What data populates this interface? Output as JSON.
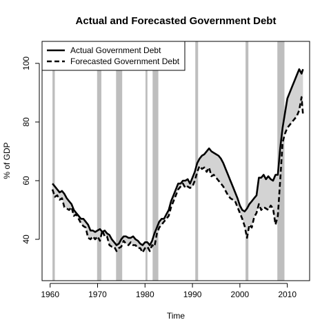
{
  "chart_data": {
    "type": "line",
    "title": "Actual and Forecasted Government Debt",
    "xlabel": "Time",
    "ylabel": "% of GDP",
    "xlim": [
      1958.3,
      2014.7
    ],
    "ylim": [
      25.9,
      107.5
    ],
    "x_ticks": [
      1960,
      1970,
      1980,
      1990,
      2000,
      2010
    ],
    "y_ticks": [
      40,
      60,
      80,
      100
    ],
    "grid": false,
    "legend_position": "top-left",
    "band_fill": "#d3d3d3",
    "recession_color": "#bebebe",
    "recessions": [
      [
        1960.5,
        1961.0
      ],
      [
        1969.9,
        1970.8
      ],
      [
        1973.9,
        1975.2
      ],
      [
        1980.1,
        1980.5
      ],
      [
        1981.6,
        1982.8
      ],
      [
        1990.6,
        1991.2
      ],
      [
        2001.2,
        2001.8
      ],
      [
        2007.9,
        2009.4
      ]
    ],
    "series": [
      {
        "name": "Actual Government Debt",
        "style": "solid",
        "color": "#000000",
        "points": [
          [
            1960.5,
            59
          ],
          [
            1961.0,
            58
          ],
          [
            1961.5,
            57
          ],
          [
            1962.0,
            56
          ],
          [
            1962.5,
            56.5
          ],
          [
            1963.0,
            55.5
          ],
          [
            1963.5,
            54
          ],
          [
            1964.0,
            53
          ],
          [
            1964.5,
            52
          ],
          [
            1965.0,
            50
          ],
          [
            1965.5,
            49
          ],
          [
            1966.0,
            48
          ],
          [
            1966.5,
            47
          ],
          [
            1967.0,
            47
          ],
          [
            1967.5,
            46
          ],
          [
            1968.0,
            45
          ],
          [
            1968.5,
            43
          ],
          [
            1969.0,
            43
          ],
          [
            1969.5,
            42.5
          ],
          [
            1970.0,
            43
          ],
          [
            1970.5,
            43.5
          ],
          [
            1971.0,
            42.5
          ],
          [
            1971.5,
            43
          ],
          [
            1972.0,
            42
          ],
          [
            1972.5,
            41.5
          ],
          [
            1973.0,
            40
          ],
          [
            1973.5,
            39
          ],
          [
            1974.0,
            38
          ],
          [
            1974.5,
            38.5
          ],
          [
            1975.0,
            40
          ],
          [
            1975.5,
            41
          ],
          [
            1976.0,
            41
          ],
          [
            1976.5,
            40.5
          ],
          [
            1977.0,
            40.5
          ],
          [
            1977.5,
            41
          ],
          [
            1978.0,
            40
          ],
          [
            1978.5,
            39.5
          ],
          [
            1979.0,
            38.5
          ],
          [
            1979.5,
            38
          ],
          [
            1980.0,
            39
          ],
          [
            1980.5,
            39
          ],
          [
            1981.0,
            38
          ],
          [
            1981.5,
            39.5
          ],
          [
            1982.0,
            42
          ],
          [
            1982.5,
            44
          ],
          [
            1983.0,
            46
          ],
          [
            1983.5,
            47
          ],
          [
            1984.0,
            47
          ],
          [
            1984.5,
            48.5
          ],
          [
            1985.0,
            50
          ],
          [
            1985.5,
            53
          ],
          [
            1986.0,
            55
          ],
          [
            1986.5,
            57
          ],
          [
            1987.0,
            59
          ],
          [
            1987.5,
            59
          ],
          [
            1988.0,
            60
          ],
          [
            1988.5,
            60
          ],
          [
            1989.0,
            60.5
          ],
          [
            1989.5,
            59
          ],
          [
            1990.0,
            61
          ],
          [
            1990.5,
            63
          ],
          [
            1991.0,
            66
          ],
          [
            1991.5,
            67.5
          ],
          [
            1992.0,
            68.5
          ],
          [
            1992.5,
            69
          ],
          [
            1993.0,
            70
          ],
          [
            1993.5,
            71
          ],
          [
            1994.0,
            70
          ],
          [
            1994.5,
            69.5
          ],
          [
            1995.0,
            69
          ],
          [
            1995.5,
            68.5
          ],
          [
            1996.0,
            67.5
          ],
          [
            1996.5,
            66
          ],
          [
            1997.0,
            64
          ],
          [
            1997.5,
            62
          ],
          [
            1998.0,
            60
          ],
          [
            1998.5,
            58
          ],
          [
            1999.0,
            56
          ],
          [
            1999.5,
            54
          ],
          [
            2000.0,
            51.5
          ],
          [
            2000.5,
            50
          ],
          [
            2001.0,
            49.5
          ],
          [
            2001.5,
            50.5
          ],
          [
            2002.0,
            52
          ],
          [
            2002.5,
            53
          ],
          [
            2003.0,
            54
          ],
          [
            2003.5,
            55
          ],
          [
            2004.0,
            61
          ],
          [
            2004.5,
            61
          ],
          [
            2005.0,
            62
          ],
          [
            2005.5,
            60.5
          ],
          [
            2006.0,
            61.5
          ],
          [
            2006.5,
            60.5
          ],
          [
            2007.0,
            60
          ],
          [
            2007.5,
            62
          ],
          [
            2008.0,
            62
          ],
          [
            2008.5,
            71
          ],
          [
            2009.0,
            78
          ],
          [
            2009.5,
            83
          ],
          [
            2010.0,
            88
          ],
          [
            2010.5,
            90
          ],
          [
            2011.0,
            92
          ],
          [
            2011.5,
            94
          ],
          [
            2012.0,
            96
          ],
          [
            2012.5,
            98
          ],
          [
            2013.0,
            96.5
          ],
          [
            2013.3,
            98
          ]
        ]
      },
      {
        "name": "Forecasted Government Debt",
        "style": "dashed",
        "color": "#000000",
        "points": [
          [
            1960.5,
            57
          ],
          [
            1961.0,
            54.5
          ],
          [
            1961.5,
            55
          ],
          [
            1962.0,
            53.5
          ],
          [
            1962.5,
            54
          ],
          [
            1963.0,
            51
          ],
          [
            1963.5,
            50.5
          ],
          [
            1964.0,
            50
          ],
          [
            1964.5,
            51
          ],
          [
            1965.0,
            48
          ],
          [
            1965.5,
            48.5
          ],
          [
            1966.0,
            47
          ],
          [
            1966.5,
            45.5
          ],
          [
            1967.0,
            44.5
          ],
          [
            1967.5,
            44
          ],
          [
            1968.0,
            40.5
          ],
          [
            1968.5,
            40
          ],
          [
            1969.0,
            41
          ],
          [
            1969.5,
            40
          ],
          [
            1970.0,
            41
          ],
          [
            1970.5,
            39.5
          ],
          [
            1971.0,
            43
          ],
          [
            1971.5,
            41
          ],
          [
            1972.0,
            41
          ],
          [
            1972.5,
            38
          ],
          [
            1973.0,
            37.5
          ],
          [
            1973.5,
            37.5
          ],
          [
            1974.0,
            36
          ],
          [
            1974.5,
            37
          ],
          [
            1975.0,
            37.5
          ],
          [
            1975.5,
            39.5
          ],
          [
            1976.0,
            38.5
          ],
          [
            1976.5,
            38
          ],
          [
            1977.0,
            39
          ],
          [
            1977.5,
            38
          ],
          [
            1978.0,
            38
          ],
          [
            1978.5,
            37
          ],
          [
            1979.0,
            37
          ],
          [
            1979.5,
            35.5
          ],
          [
            1980.0,
            37
          ],
          [
            1980.5,
            37.5
          ],
          [
            1981.0,
            36
          ],
          [
            1981.5,
            38
          ],
          [
            1982.0,
            37.5
          ],
          [
            1982.5,
            42
          ],
          [
            1983.0,
            44
          ],
          [
            1983.5,
            45
          ],
          [
            1984.0,
            46
          ],
          [
            1984.5,
            47
          ],
          [
            1985.0,
            48
          ],
          [
            1985.5,
            51
          ],
          [
            1986.0,
            53
          ],
          [
            1986.5,
            55
          ],
          [
            1987.0,
            57
          ],
          [
            1987.5,
            58
          ],
          [
            1988.0,
            59
          ],
          [
            1988.5,
            57.5
          ],
          [
            1989.0,
            58
          ],
          [
            1989.5,
            57.5
          ],
          [
            1990.0,
            58
          ],
          [
            1990.5,
            60
          ],
          [
            1991.0,
            63
          ],
          [
            1991.5,
            65
          ],
          [
            1992.0,
            64
          ],
          [
            1992.5,
            64.5
          ],
          [
            1993.0,
            63
          ],
          [
            1993.5,
            64.5
          ],
          [
            1994.0,
            61.5
          ],
          [
            1994.5,
            62
          ],
          [
            1995.0,
            61
          ],
          [
            1995.5,
            60
          ],
          [
            1996.0,
            59
          ],
          [
            1996.5,
            58
          ],
          [
            1997.0,
            56.5
          ],
          [
            1997.5,
            55
          ],
          [
            1998.0,
            54
          ],
          [
            1998.5,
            53.5
          ],
          [
            1999.0,
            53
          ],
          [
            1999.5,
            51
          ],
          [
            2000.0,
            49
          ],
          [
            2000.5,
            47
          ],
          [
            2001.0,
            44.5
          ],
          [
            2001.5,
            40.5
          ],
          [
            2002.0,
            45
          ],
          [
            2002.5,
            44
          ],
          [
            2003.0,
            47.5
          ],
          [
            2003.5,
            49
          ],
          [
            2004.0,
            52
          ],
          [
            2004.5,
            50
          ],
          [
            2005.0,
            51
          ],
          [
            2005.5,
            50.5
          ],
          [
            2006.0,
            50
          ],
          [
            2006.5,
            51.5
          ],
          [
            2007.0,
            50.5
          ],
          [
            2007.5,
            45
          ],
          [
            2008.0,
            48
          ],
          [
            2008.5,
            60
          ],
          [
            2009.0,
            73
          ],
          [
            2009.5,
            76
          ],
          [
            2010.0,
            78
          ],
          [
            2010.5,
            79
          ],
          [
            2011.0,
            80
          ],
          [
            2011.5,
            81
          ],
          [
            2012.0,
            82
          ],
          [
            2012.5,
            84
          ],
          [
            2013.0,
            88.5
          ],
          [
            2013.3,
            82.5
          ]
        ]
      }
    ]
  }
}
